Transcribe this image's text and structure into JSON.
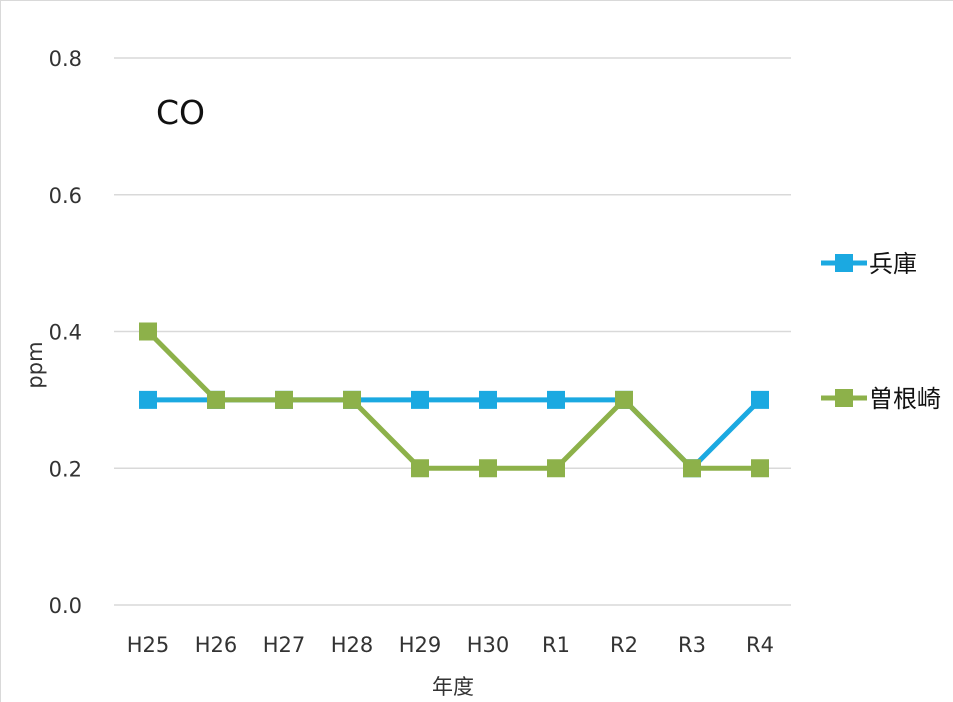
{
  "chart_data": {
    "type": "line",
    "title": "CO",
    "xlabel": "年度",
    "ylabel": "ppm",
    "categories": [
      "H25",
      "H26",
      "H27",
      "H28",
      "H29",
      "H30",
      "R1",
      "R2",
      "R3",
      "R4"
    ],
    "ylim": [
      0,
      0.8
    ],
    "yticks": [
      "0.0",
      "0.2",
      "0.4",
      "0.6",
      "0.8"
    ],
    "grid": true,
    "legend_position": "right",
    "series": [
      {
        "name": "兵庫",
        "color": "#1ba9e1",
        "marker": "square",
        "values": [
          0.3,
          0.3,
          0.3,
          0.3,
          0.3,
          0.3,
          0.3,
          0.3,
          0.2,
          0.3
        ]
      },
      {
        "name": "曽根崎",
        "color": "#8db14a",
        "marker": "square",
        "values": [
          0.4,
          0.3,
          0.3,
          0.3,
          0.2,
          0.2,
          0.2,
          0.3,
          0.2,
          0.2
        ]
      }
    ]
  }
}
